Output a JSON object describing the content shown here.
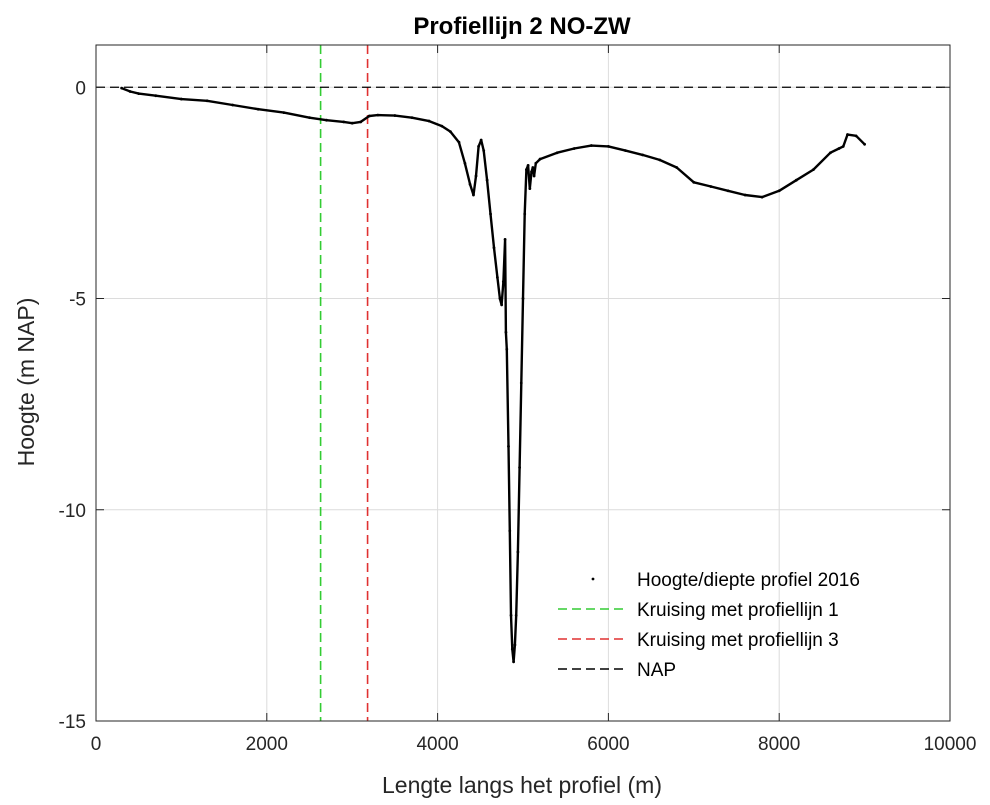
{
  "chart_data": {
    "type": "line",
    "title": "Profiellijn 2 NO-ZW",
    "xlabel": "Lengte langs het profiel (m)",
    "ylabel": "Hoogte (m NAP)",
    "xlim": [
      0,
      10000
    ],
    "ylim": [
      -15,
      1
    ],
    "xticks": [
      0,
      2000,
      4000,
      6000,
      8000,
      10000
    ],
    "xtick_labels": [
      "0",
      "2000",
      "4000",
      "6000",
      "8000",
      "10000"
    ],
    "yticks": [
      0,
      -5,
      -10,
      -15
    ],
    "ytick_labels": [
      "0",
      "-5",
      "-10",
      "-15"
    ],
    "grid": true,
    "legend_position": "bottom-right",
    "series": [
      {
        "name": "Hoogte/diepte profiel 2016",
        "style": "dots",
        "color": "#000000",
        "x": [
          300,
          400,
          500,
          700,
          1000,
          1300,
          1600,
          1900,
          2200,
          2500,
          2700,
          2900,
          3000,
          3100,
          3200,
          3300,
          3500,
          3700,
          3900,
          4050,
          4150,
          4250,
          4320,
          4380,
          4420,
          4450,
          4480,
          4510,
          4540,
          4580,
          4620,
          4660,
          4700,
          4730,
          4750,
          4770,
          4790,
          4800,
          4810,
          4830,
          4845,
          4860,
          4875,
          4890,
          4905,
          4920,
          4940,
          4960,
          4980,
          5000,
          5020,
          5040,
          5060,
          5080,
          5100,
          5115,
          5130,
          5150,
          5200,
          5400,
          5600,
          5800,
          6000,
          6200,
          6400,
          6600,
          6800,
          7000,
          7200,
          7400,
          7600,
          7800,
          8000,
          8200,
          8400,
          8600,
          8700,
          8750,
          8800,
          8900,
          9000
        ],
        "y": [
          -0.02,
          -0.1,
          -0.15,
          -0.2,
          -0.28,
          -0.32,
          -0.42,
          -0.52,
          -0.6,
          -0.72,
          -0.78,
          -0.82,
          -0.85,
          -0.82,
          -0.68,
          -0.66,
          -0.67,
          -0.72,
          -0.8,
          -0.92,
          -1.05,
          -1.3,
          -1.8,
          -2.3,
          -2.55,
          -2.1,
          -1.4,
          -1.25,
          -1.5,
          -2.2,
          -3.0,
          -3.8,
          -4.5,
          -5.0,
          -5.15,
          -4.6,
          -3.6,
          -5.8,
          -6.2,
          -8.5,
          -10.5,
          -12.5,
          -13.3,
          -13.6,
          -13.2,
          -12.5,
          -11.0,
          -9.0,
          -7.0,
          -5.0,
          -3.0,
          -1.95,
          -1.85,
          -2.4,
          -2.0,
          -1.9,
          -2.1,
          -1.8,
          -1.7,
          -1.55,
          -1.45,
          -1.38,
          -1.4,
          -1.5,
          -1.6,
          -1.72,
          -1.9,
          -2.25,
          -2.35,
          -2.45,
          -2.55,
          -2.6,
          -2.45,
          -2.2,
          -1.95,
          -1.55,
          -1.45,
          -1.4,
          -1.12,
          -1.15,
          -1.35
        ]
      },
      {
        "name": "Kruising met profiellijn 1",
        "style": "dashed-vertical",
        "color": "#33cc33",
        "x_value": 2630
      },
      {
        "name": "Kruising met profiellijn 3",
        "style": "dashed-vertical",
        "color": "#e03131",
        "x_value": 3180
      },
      {
        "name": "NAP",
        "style": "dashed-horizontal",
        "color": "#000000",
        "y_value": 0
      }
    ]
  }
}
